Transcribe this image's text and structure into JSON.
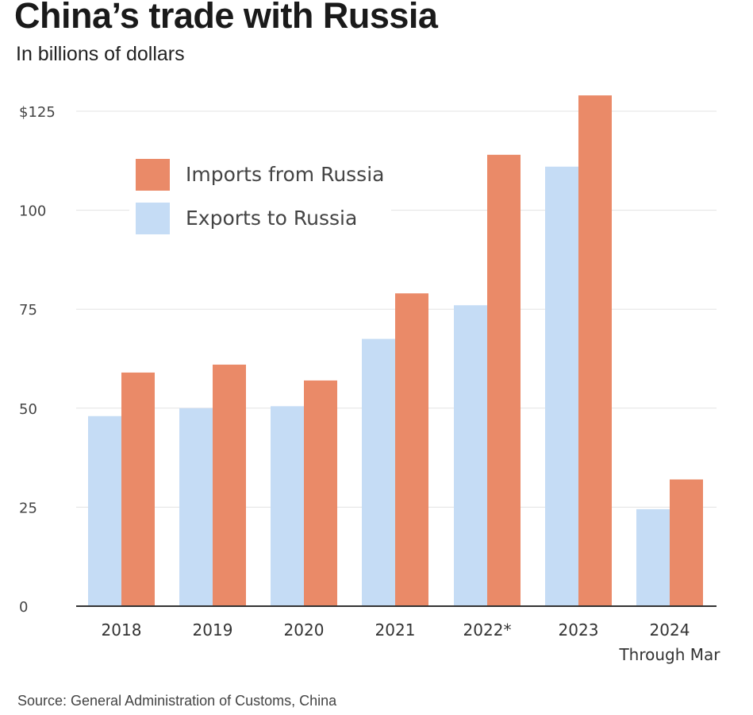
{
  "title": "China’s trade with Russia",
  "subtitle": "In billions of dollars",
  "source": "Source: General Administration of Customs,  China",
  "colors": {
    "imports": "#ea8a68",
    "exports": "#c5dcf5",
    "grid": "#e3e3e3",
    "axis": "#333333"
  },
  "chart_data": {
    "type": "bar",
    "categories": [
      "2018",
      "2019",
      "2020",
      "2021",
      "2022*",
      "2023",
      "2024\nThrough Mar"
    ],
    "series": [
      {
        "name": "Exports to Russia",
        "values": [
          48,
          50,
          50.5,
          67.5,
          76,
          111,
          24.5
        ]
      },
      {
        "name": "Imports from Russia",
        "values": [
          59,
          61,
          57,
          79,
          114,
          129,
          32
        ]
      }
    ],
    "ylim": [
      0,
      130
    ],
    "yticks": [
      0,
      25,
      50,
      75,
      100,
      125
    ],
    "ytick_labels": [
      "0",
      "25",
      "50",
      "75",
      "100",
      "$125"
    ],
    "legend": {
      "placement": "top-left",
      "entries": [
        "Imports from Russia",
        "Exports to Russia"
      ]
    },
    "grid": true,
    "xlabel": "",
    "ylabel": ""
  }
}
